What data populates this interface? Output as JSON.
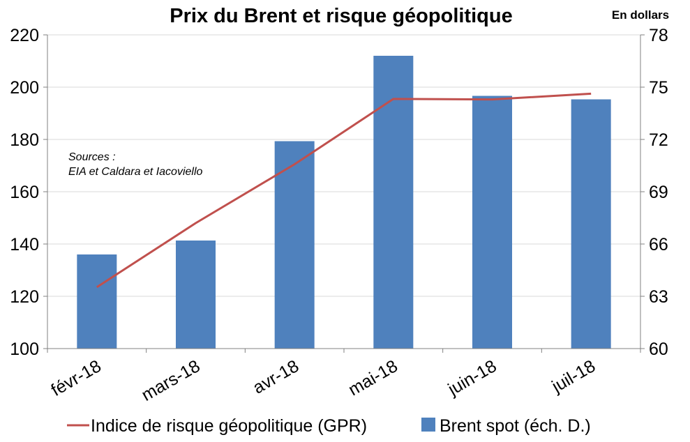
{
  "chart_data": {
    "type": "bar+line",
    "title": "Prix du Brent et risque géopolitique",
    "unit_label": "En dollars",
    "source_label": "Sources :",
    "source_text": "EIA et Caldara et Iacoviello",
    "categories": [
      "févr-18",
      "mars-18",
      "avr-18",
      "mai-18",
      "juin-18",
      "juil-18"
    ],
    "y_left": {
      "ylim": [
        100,
        220
      ],
      "ticks": [
        100,
        120,
        140,
        160,
        180,
        200,
        220
      ]
    },
    "y_right": {
      "ylim": [
        60,
        78
      ],
      "ticks": [
        60,
        63,
        66,
        69,
        72,
        75,
        78
      ]
    },
    "series": [
      {
        "name": "Indice de risque géopolitique (GPR)",
        "kind": "line",
        "axis": "left",
        "color": "#c0504d",
        "values": [
          123.5,
          148,
          170.5,
          195.5,
          195.3,
          197.5
        ]
      },
      {
        "name": "Brent spot (éch. D.)",
        "kind": "bar",
        "axis": "right",
        "color": "#4f81bd",
        "values": [
          65.4,
          66.2,
          71.9,
          76.8,
          74.5,
          74.3
        ]
      }
    ],
    "grid": "horizontal",
    "legend_position": "bottom"
  }
}
